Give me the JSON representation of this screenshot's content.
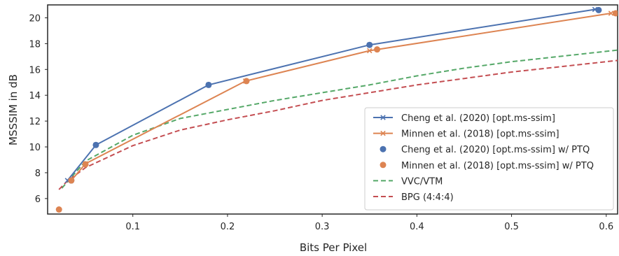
{
  "chart_data": {
    "type": "line",
    "title": "",
    "xlabel": "Bits Per Pixel",
    "ylabel": "MSSSIM in dB",
    "xlim": [
      0.01,
      0.612
    ],
    "ylim": [
      4.8,
      21.0
    ],
    "xticks": [
      0.1,
      0.2,
      0.3,
      0.4,
      0.5,
      0.6
    ],
    "yticks": [
      6,
      8,
      10,
      12,
      14,
      16,
      18,
      20
    ],
    "xtick_labels": [
      "0.1",
      "0.2",
      "0.3",
      "0.4",
      "0.5",
      "0.6"
    ],
    "ytick_labels": [
      "6",
      "8",
      "10",
      "12",
      "14",
      "16",
      "18",
      "20"
    ],
    "grid": false,
    "legend_position": "lower-right",
    "series": [
      {
        "name": "Cheng et al. (2020) [opt.ms-ssim]",
        "style": "solid-line-x-marker",
        "color": "#4c72b0",
        "x": [
          0.031,
          0.061,
          0.18,
          0.35,
          0.588
        ],
        "y": [
          7.4,
          10.15,
          14.8,
          17.9,
          20.65
        ]
      },
      {
        "name": "Minnen et al. (2018) [opt.ms-ssim]",
        "style": "solid-line-x-marker",
        "color": "#dd8452",
        "x": [
          0.035,
          0.05,
          0.219,
          0.35,
          0.605
        ],
        "y": [
          7.4,
          8.7,
          15.1,
          17.45,
          20.35
        ]
      },
      {
        "name": "Cheng et al. (2020) [opt.ms-ssim] w/ PTQ",
        "style": "dot-marker",
        "color": "#4c72b0",
        "x": [
          0.035,
          0.061,
          0.18,
          0.35,
          0.592
        ],
        "y": [
          7.4,
          10.15,
          14.8,
          17.9,
          20.6
        ]
      },
      {
        "name": "Minnen et al. (2018) [opt.ms-ssim] w/ PTQ",
        "style": "dot-marker",
        "color": "#dd8452",
        "x": [
          0.022,
          0.035,
          0.05,
          0.22,
          0.358,
          0.61
        ],
        "y": [
          5.15,
          7.4,
          8.65,
          15.1,
          17.55,
          20.35
        ]
      },
      {
        "name": "VVC/VTM",
        "style": "dashed-line",
        "color": "#55a868",
        "x": [
          0.025,
          0.05,
          0.1,
          0.15,
          0.2,
          0.25,
          0.3,
          0.35,
          0.4,
          0.45,
          0.5,
          0.55,
          0.612
        ],
        "y": [
          6.8,
          8.9,
          10.9,
          12.2,
          12.9,
          13.6,
          14.2,
          14.8,
          15.5,
          16.1,
          16.6,
          17.0,
          17.5
        ]
      },
      {
        "name": "BPG (4:4:4)",
        "style": "dashed-line",
        "color": "#c44e52",
        "x": [
          0.022,
          0.03,
          0.05,
          0.1,
          0.15,
          0.2,
          0.25,
          0.3,
          0.35,
          0.4,
          0.45,
          0.5,
          0.55,
          0.612
        ],
        "y": [
          6.7,
          7.3,
          8.4,
          10.1,
          11.3,
          12.1,
          12.8,
          13.6,
          14.2,
          14.8,
          15.3,
          15.8,
          16.2,
          16.7
        ]
      }
    ]
  }
}
